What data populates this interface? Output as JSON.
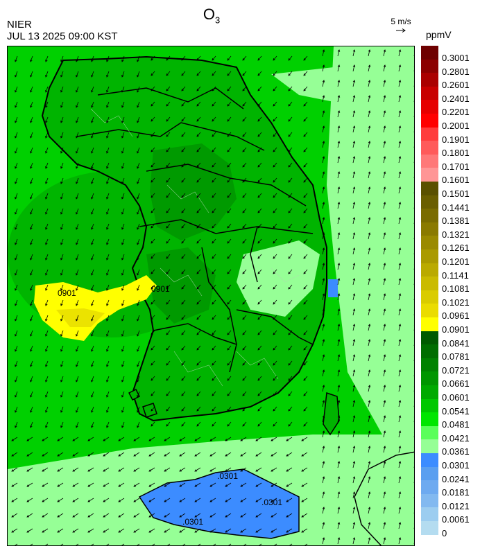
{
  "header": {
    "title_main": "O",
    "title_sub": "3",
    "agency": "NIER",
    "datetime": "JUL 13 2025 09:00 KST",
    "wind_ref_label": "5 m/s",
    "unit": "ppmV"
  },
  "legend": {
    "levels": [
      {
        "label": "0.3001",
        "color": "#6e0000"
      },
      {
        "label": "0.2801",
        "color": "#8c0000"
      },
      {
        "label": "0.2601",
        "color": "#aa0000"
      },
      {
        "label": "0.2401",
        "color": "#c80000"
      },
      {
        "label": "0.2201",
        "color": "#e60000"
      },
      {
        "label": "0.2001",
        "color": "#ff0000"
      },
      {
        "label": "0.1901",
        "color": "#ff3c3c"
      },
      {
        "label": "0.1801",
        "color": "#ff5a5a"
      },
      {
        "label": "0.1701",
        "color": "#ff7878"
      },
      {
        "label": "0.1601",
        "color": "#ff9696"
      },
      {
        "label": "0.1501",
        "color": "#5a5000"
      },
      {
        "label": "0.1441",
        "color": "#6a5e00"
      },
      {
        "label": "0.1381",
        "color": "#7a6c00"
      },
      {
        "label": "0.1321",
        "color": "#8a7a00"
      },
      {
        "label": "0.1261",
        "color": "#9a8a00"
      },
      {
        "label": "0.1201",
        "color": "#aa9a00"
      },
      {
        "label": "0.1141",
        "color": "#baaa00"
      },
      {
        "label": "0.1081",
        "color": "#cabb00"
      },
      {
        "label": "0.1021",
        "color": "#dacc00"
      },
      {
        "label": "0.0961",
        "color": "#eadc00"
      },
      {
        "label": "0.0901",
        "color": "#ffff00"
      },
      {
        "label": "0.0841",
        "color": "#005a00"
      },
      {
        "label": "0.0781",
        "color": "#006e00"
      },
      {
        "label": "0.0721",
        "color": "#008200"
      },
      {
        "label": "0.0661",
        "color": "#009600"
      },
      {
        "label": "0.0601",
        "color": "#00aa00"
      },
      {
        "label": "0.0541",
        "color": "#00c800"
      },
      {
        "label": "0.0481",
        "color": "#00e600"
      },
      {
        "label": "0.0421",
        "color": "#5aff5a"
      },
      {
        "label": "0.0361",
        "color": "#96ff96"
      },
      {
        "label": "0.0301",
        "color": "#3c8cff"
      },
      {
        "label": "0.0241",
        "color": "#5a9ff0"
      },
      {
        "label": "0.0181",
        "color": "#6eaaf0"
      },
      {
        "label": "0.0121",
        "color": "#82b9f0"
      },
      {
        "label": "0.0061",
        "color": "#9ccdf0"
      },
      {
        "label": "0",
        "color": "#b4dcf0"
      }
    ]
  },
  "map": {
    "contour_labels": [
      "0901",
      "0901",
      ".0301",
      ".0301",
      ".0301"
    ],
    "colors": {
      "sea": "#00d000",
      "land": "#00b400",
      "land_dark": "#009a00",
      "light_green": "#96ff96",
      "low_blue": "#3c8cff",
      "high_yellow": "#ffff00",
      "high_yellow_dark": "#dacc00"
    }
  }
}
